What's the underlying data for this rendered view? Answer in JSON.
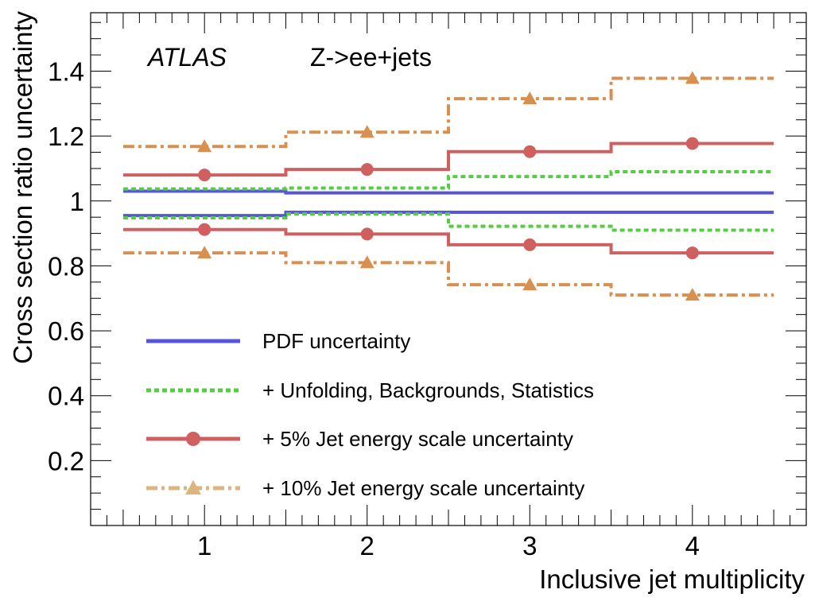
{
  "chart_data": {
    "type": "step",
    "title": "",
    "experiment_label": "ATLAS",
    "process_label": "Z->ee+jets",
    "xlabel": "Inclusive jet multiplicity",
    "ylabel": "Cross section ratio uncertainty",
    "xlim": [
      0.3,
      4.7
    ],
    "ylim": [
      0.0,
      1.58
    ],
    "x_ticks": [
      1,
      2,
      3,
      4
    ],
    "x_tick_labels": [
      "1",
      "2",
      "3",
      "4"
    ],
    "y_ticks": [
      0.2,
      0.4,
      0.6,
      0.8,
      1.0,
      1.2,
      1.4
    ],
    "y_tick_labels": [
      "0.2",
      "0.4",
      "0.6",
      "0.8",
      "1",
      "1.2",
      "1.4"
    ],
    "bins": [
      1,
      2,
      3,
      4
    ],
    "bin_half_width": 0.5,
    "legend_position": "bottom-left",
    "series": [
      {
        "name": "PDF uncertainty",
        "color": "#5555dd",
        "style": "solid",
        "marker": "none",
        "upper": [
          1.03,
          1.025,
          1.025,
          1.025
        ],
        "lower": [
          0.955,
          0.965,
          0.965,
          0.965
        ]
      },
      {
        "name": "+ Unfolding, Backgrounds, Statistics",
        "color": "#55cc44",
        "style": "dashed",
        "marker": "none",
        "upper": [
          1.037,
          1.04,
          1.075,
          1.09
        ],
        "lower": [
          0.948,
          0.96,
          0.922,
          0.91
        ]
      },
      {
        "name": "+   5% Jet energy scale uncertainty",
        "color": "#d06060",
        "style": "solid",
        "marker": "circle",
        "upper": [
          1.08,
          1.097,
          1.152,
          1.177
        ],
        "lower": [
          0.912,
          0.898,
          0.865,
          0.84
        ]
      },
      {
        "name": "+ 10% Jet energy scale uncertainty",
        "color": "#d89050",
        "style": "dashdot",
        "marker": "triangle",
        "upper": [
          1.168,
          1.212,
          1.315,
          1.378
        ],
        "lower": [
          0.84,
          0.81,
          0.742,
          0.71
        ]
      }
    ]
  }
}
